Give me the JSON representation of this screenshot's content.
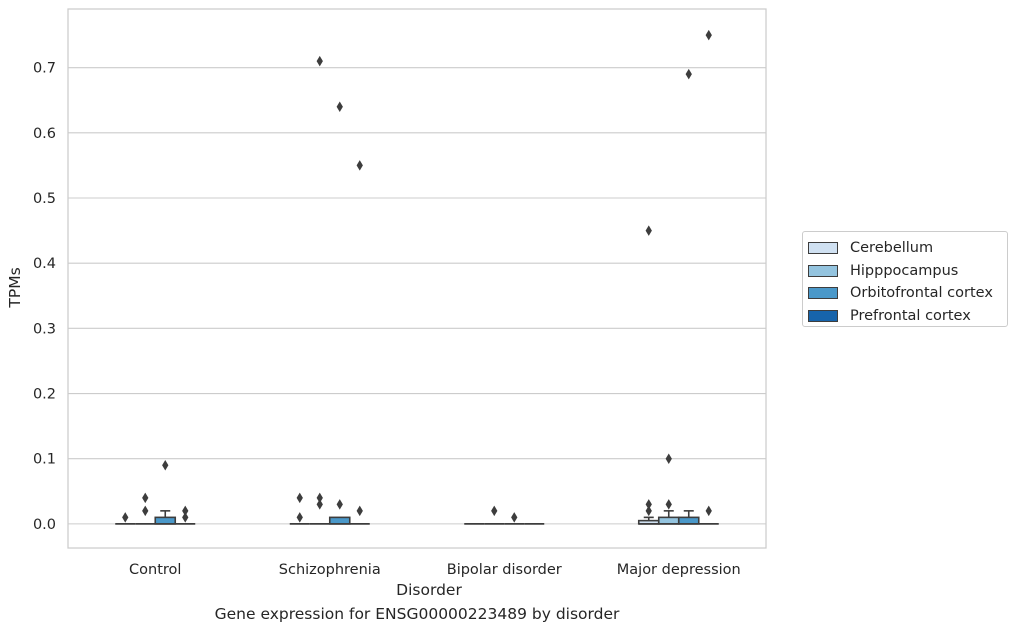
{
  "chart_data": {
    "type": "box",
    "caption": "Gene expression for ENSG00000223489 by disorder",
    "xlabel": "Disorder",
    "ylabel": "TPMs",
    "ylim": [
      -0.037,
      0.79
    ],
    "yticks": [
      0.0,
      0.1,
      0.2,
      0.3,
      0.4,
      0.5,
      0.6,
      0.7
    ],
    "ytick_labels": [
      "0.0",
      "0.1",
      "0.2",
      "0.3",
      "0.4",
      "0.5",
      "0.6",
      "0.7"
    ],
    "grid": "horizontal",
    "legend_position": "right",
    "categories": [
      "Control",
      "Schizophrenia",
      "Bipolar disorder",
      "Major depression"
    ],
    "series": [
      {
        "name": "Cerebellum",
        "color": "#d0e1f2",
        "boxes": [
          {
            "q1": 0,
            "median": 0,
            "q3": 0,
            "whisker_low": 0,
            "whisker_high": 0,
            "outliers": [
              0.01
            ]
          },
          {
            "q1": 0,
            "median": 0,
            "q3": 0,
            "whisker_low": 0,
            "whisker_high": 0,
            "outliers": [
              0.01,
              0.04
            ]
          },
          {
            "q1": 0,
            "median": 0,
            "q3": 0,
            "whisker_low": 0,
            "whisker_high": 0,
            "outliers": []
          },
          {
            "q1": 0,
            "median": 0,
            "q3": 0.005,
            "whisker_low": 0,
            "whisker_high": 0.01,
            "outliers": [
              0.02,
              0.03,
              0.45
            ]
          }
        ]
      },
      {
        "name": "Hipppocampus",
        "color": "#94c4df",
        "boxes": [
          {
            "q1": 0,
            "median": 0,
            "q3": 0,
            "whisker_low": 0,
            "whisker_high": 0,
            "outliers": [
              0.02,
              0.04
            ]
          },
          {
            "q1": 0,
            "median": 0,
            "q3": 0,
            "whisker_low": 0,
            "whisker_high": 0,
            "outliers": [
              0.03,
              0.04,
              0.71
            ]
          },
          {
            "q1": 0,
            "median": 0,
            "q3": 0,
            "whisker_low": 0,
            "whisker_high": 0,
            "outliers": [
              0.02
            ]
          },
          {
            "q1": 0,
            "median": 0,
            "q3": 0.01,
            "whisker_low": 0,
            "whisker_high": 0.02,
            "outliers": [
              0.03,
              0.1
            ]
          }
        ]
      },
      {
        "name": "Orbitofrontal cortex",
        "color": "#4a98c9",
        "boxes": [
          {
            "q1": 0,
            "median": 0,
            "q3": 0.01,
            "whisker_low": 0,
            "whisker_high": 0.02,
            "outliers": [
              0.09
            ]
          },
          {
            "q1": 0,
            "median": 0,
            "q3": 0.01,
            "whisker_low": 0,
            "whisker_high": 0.01,
            "outliers": [
              0.03,
              0.64
            ]
          },
          {
            "q1": 0,
            "median": 0,
            "q3": 0,
            "whisker_low": 0,
            "whisker_high": 0,
            "outliers": [
              0.01
            ]
          },
          {
            "q1": 0,
            "median": 0,
            "q3": 0.01,
            "whisker_low": 0,
            "whisker_high": 0.02,
            "outliers": [
              0.69
            ]
          }
        ]
      },
      {
        "name": "Prefrontal cortex",
        "color": "#1764ab",
        "boxes": [
          {
            "q1": 0,
            "median": 0,
            "q3": 0,
            "whisker_low": 0,
            "whisker_high": 0,
            "outliers": [
              0.01,
              0.02
            ]
          },
          {
            "q1": 0,
            "median": 0,
            "q3": 0,
            "whisker_low": 0,
            "whisker_high": 0,
            "outliers": [
              0.02,
              0.55
            ]
          },
          {
            "q1": 0,
            "median": 0,
            "q3": 0,
            "whisker_low": 0,
            "whisker_high": 0,
            "outliers": []
          },
          {
            "q1": 0,
            "median": 0,
            "q3": 0,
            "whisker_low": 0,
            "whisker_high": 0,
            "outliers": [
              0.02,
              0.75
            ]
          }
        ]
      }
    ]
  }
}
